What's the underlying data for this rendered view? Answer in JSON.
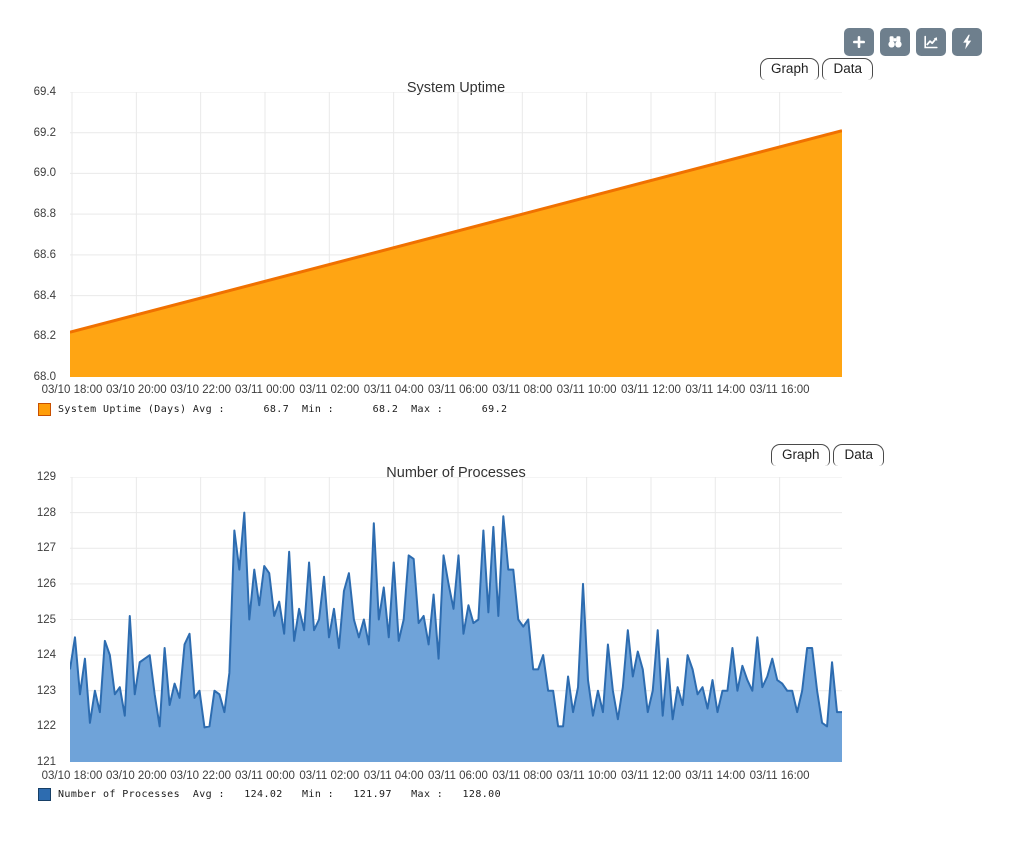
{
  "toolbar": {
    "background": "#6e7f8d",
    "icon_color": "#ffffff",
    "buttons": [
      {
        "name": "add",
        "icon": "plus-icon"
      },
      {
        "name": "search",
        "icon": "binoculars-icon"
      },
      {
        "name": "graph-view",
        "icon": "chart-line-icon"
      },
      {
        "name": "realtime",
        "icon": "lightning-icon"
      }
    ]
  },
  "chart_data": [
    {
      "type": "area",
      "title": "System Uptime",
      "tabs": [
        "Graph",
        "Data"
      ],
      "series": [
        {
          "name": "System Uptime (Days)",
          "avg": 68.7,
          "min": 68.2,
          "max": 69.2
        }
      ],
      "legend_text": "System Uptime (Days) Avg :      68.7  Min :      68.2  Max :      69.2",
      "ylim": [
        68.0,
        69.4
      ],
      "y_ticks": [
        "68.0",
        "68.2",
        "68.4",
        "68.6",
        "68.8",
        "69.0",
        "69.2",
        "69.4"
      ],
      "x_ticks": [
        "03/10 18:00",
        "03/10 20:00",
        "03/10 22:00",
        "03/11 00:00",
        "03/11 02:00",
        "03/11 04:00",
        "03/11 06:00",
        "03/11 08:00",
        "03/11 10:00",
        "03/11 12:00",
        "03/11 14:00",
        "03/11 16:00"
      ],
      "values": [
        68.22,
        69.21
      ],
      "grid": true,
      "grid_color": "#e9e9e9",
      "legend_position": "bottom-left",
      "colors": {
        "fill": "#FFA513",
        "stroke": "#F07100",
        "stroke_width": 3,
        "swatch": "#FF9E0A",
        "swatch_border": "#C85000"
      }
    },
    {
      "type": "area",
      "title": "Number of Processes",
      "tabs": [
        "Graph",
        "Data"
      ],
      "series": [
        {
          "name": "Number of Processes",
          "avg": 124.02,
          "min": 121.97,
          "max": 128.0
        }
      ],
      "legend_text": "Number of Processes  Avg :   124.02   Min :   121.97   Max :   128.00",
      "ylim": [
        121,
        129
      ],
      "y_ticks": [
        "121",
        "122",
        "123",
        "124",
        "125",
        "126",
        "127",
        "128",
        "129"
      ],
      "x_ticks": [
        "03/10 18:00",
        "03/10 20:00",
        "03/10 22:00",
        "03/11 00:00",
        "03/11 02:00",
        "03/11 04:00",
        "03/11 06:00",
        "03/11 08:00",
        "03/11 10:00",
        "03/11 12:00",
        "03/11 14:00",
        "03/11 16:00"
      ],
      "values": [
        123.6,
        124.5,
        122.9,
        123.9,
        122.1,
        123.0,
        122.4,
        124.4,
        124.0,
        122.9,
        123.1,
        122.3,
        125.1,
        122.9,
        123.8,
        123.9,
        124.0,
        122.9,
        122.0,
        124.2,
        122.6,
        123.2,
        122.8,
        124.3,
        124.6,
        122.8,
        123.0,
        121.97,
        122.0,
        123.0,
        122.9,
        122.4,
        123.5,
        127.5,
        126.4,
        128.0,
        125.0,
        126.4,
        125.4,
        126.5,
        126.3,
        125.1,
        125.5,
        124.6,
        126.9,
        124.4,
        125.3,
        124.7,
        126.6,
        124.7,
        125.0,
        126.2,
        124.5,
        125.3,
        124.2,
        125.8,
        126.3,
        125.0,
        124.5,
        125.0,
        124.3,
        127.7,
        125.0,
        125.9,
        124.5,
        126.6,
        124.4,
        125.0,
        126.8,
        126.7,
        124.9,
        125.1,
        124.3,
        125.7,
        123.9,
        126.8,
        126.0,
        125.3,
        126.8,
        124.6,
        125.4,
        124.9,
        125.0,
        127.5,
        125.2,
        127.6,
        125.1,
        127.9,
        126.4,
        126.4,
        125.0,
        124.8,
        125.0,
        123.6,
        123.6,
        124.0,
        123.0,
        123.0,
        122.0,
        122.0,
        123.4,
        122.4,
        123.1,
        126.0,
        123.3,
        122.3,
        123.0,
        122.4,
        124.3,
        123.0,
        122.2,
        123.1,
        124.7,
        123.4,
        124.1,
        123.6,
        122.4,
        123.0,
        124.7,
        122.3,
        123.9,
        122.2,
        123.1,
        122.6,
        124.0,
        123.6,
        122.9,
        123.1,
        122.5,
        123.3,
        122.4,
        123.0,
        123.0,
        124.2,
        123.0,
        123.7,
        123.3,
        123.0,
        124.5,
        123.1,
        123.4,
        123.9,
        123.3,
        123.2,
        123.0,
        123.0,
        122.4,
        123.0,
        124.2,
        124.2,
        123.0,
        122.1,
        122.0,
        123.8,
        122.4,
        122.4
      ],
      "grid": true,
      "grid_color": "#e9e9e9",
      "legend_position": "bottom-left",
      "colors": {
        "fill": "#6FA3D9",
        "stroke": "#2D6CB0",
        "stroke_width": 2,
        "swatch": "#2D6CB0",
        "swatch_border": "#173F66"
      }
    }
  ]
}
